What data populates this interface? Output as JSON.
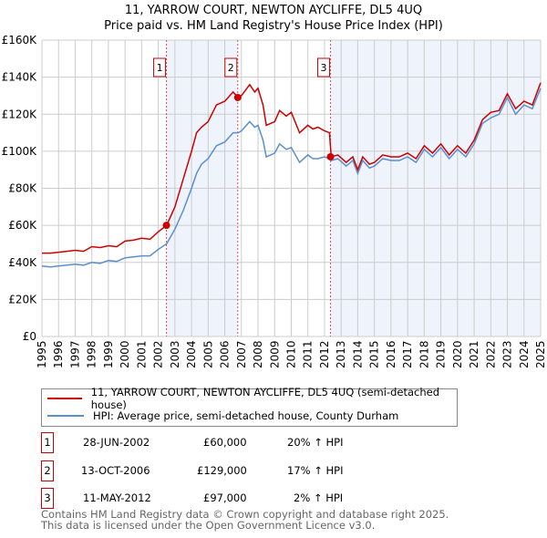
{
  "title_line1": "11, YARROW COURT, NEWTON AYCLIFFE, DL5 4UQ",
  "title_line2": "Price paid vs. HM Land Registry's House Price Index (HPI)",
  "colors": {
    "property": "#cc0000",
    "hpi": "#5b8fd0",
    "shade": "#eef3fc",
    "grid": "#cccccc"
  },
  "chart_data": {
    "type": "line",
    "xlim": [
      1995,
      2025
    ],
    "ylim": [
      0,
      160000
    ],
    "yticks": [
      0,
      20000,
      40000,
      60000,
      80000,
      100000,
      120000,
      140000,
      160000
    ],
    "ytick_labels": [
      "£0",
      "£20K",
      "£40K",
      "£60K",
      "£80K",
      "£100K",
      "£120K",
      "£140K",
      "£160K"
    ],
    "xticks": [
      "1995",
      "1996",
      "1997",
      "1998",
      "1999",
      "2000",
      "2001",
      "2002",
      "2003",
      "2004",
      "2005",
      "2006",
      "2007",
      "2008",
      "2009",
      "2010",
      "2011",
      "2012",
      "2013",
      "2014",
      "2015",
      "2016",
      "2017",
      "2018",
      "2019",
      "2020",
      "2021",
      "2022",
      "2023",
      "2024",
      "2025"
    ],
    "series": [
      {
        "name": "11, YARROW COURT, NEWTON AYCLIFFE, DL5 4UQ (semi-detached house)",
        "color": "#cc0000",
        "x": [
          1995,
          1995.5,
          1996,
          1996.5,
          1997,
          1997.5,
          1998,
          1998.5,
          1999,
          1999.5,
          2000,
          2000.5,
          2001,
          2001.5,
          2002,
          2002.5,
          2003,
          2003.5,
          2004,
          2004.3,
          2004.6,
          2005,
          2005.5,
          2006,
          2006.5,
          2006.8,
          2007,
          2007.5,
          2007.8,
          2008,
          2008.3,
          2008.5,
          2009,
          2009.3,
          2009.7,
          2010,
          2010.5,
          2011,
          2011.3,
          2011.6,
          2012,
          2012.3,
          2012.4,
          2012.8,
          2013.3,
          2013.7,
          2014,
          2014.3,
          2014.7,
          2015,
          2015.5,
          2016,
          2016.5,
          2017,
          2017.5,
          2018,
          2018.5,
          2019,
          2019.5,
          2020,
          2020.5,
          2021,
          2021.5,
          2022,
          2022.5,
          2023,
          2023.5,
          2024,
          2024.5,
          2025
        ],
        "y": [
          45000,
          45000,
          45500,
          46000,
          46500,
          46000,
          48500,
          48000,
          49000,
          48500,
          51500,
          52000,
          53000,
          52500,
          56500,
          60000,
          70000,
          85000,
          100000,
          110000,
          113000,
          116000,
          125000,
          127000,
          132000,
          129000,
          130000,
          136000,
          132000,
          134000,
          125000,
          114000,
          116000,
          122000,
          119000,
          121000,
          110000,
          114000,
          112000,
          113000,
          111000,
          110000,
          97000,
          98000,
          94000,
          97000,
          90000,
          97000,
          93000,
          94000,
          98000,
          97000,
          97000,
          99000,
          96000,
          103000,
          99000,
          104000,
          98000,
          103000,
          99000,
          106000,
          117000,
          121000,
          122000,
          131000,
          123000,
          127000,
          125000,
          137000
        ]
      },
      {
        "name": "HPI: Average price, semi-detached house, County Durham",
        "color": "#5b8fd0",
        "x": [
          1995,
          1995.5,
          1996,
          1996.5,
          1997,
          1997.5,
          1998,
          1998.5,
          1999,
          1999.5,
          2000,
          2000.5,
          2001,
          2001.5,
          2002,
          2002.5,
          2003,
          2003.5,
          2004,
          2004.3,
          2004.6,
          2005,
          2005.5,
          2006,
          2006.5,
          2006.8,
          2007,
          2007.5,
          2007.8,
          2008,
          2008.3,
          2008.5,
          2009,
          2009.3,
          2009.7,
          2010,
          2010.5,
          2011,
          2011.3,
          2011.6,
          2012,
          2012.3,
          2012.4,
          2012.8,
          2013.3,
          2013.7,
          2014,
          2014.3,
          2014.7,
          2015,
          2015.5,
          2016,
          2016.5,
          2017,
          2017.5,
          2018,
          2018.5,
          2019,
          2019.5,
          2020,
          2020.5,
          2021,
          2021.5,
          2022,
          2022.5,
          2023,
          2023.5,
          2024,
          2024.5,
          2025
        ],
        "y": [
          38000,
          37500,
          38000,
          38500,
          39000,
          38500,
          40000,
          39500,
          41000,
          40500,
          42500,
          43000,
          43500,
          43500,
          47000,
          50000,
          58000,
          68000,
          80000,
          88000,
          93000,
          96000,
          103000,
          105000,
          110000,
          110000,
          111000,
          116000,
          113000,
          114000,
          106000,
          97000,
          99000,
          104000,
          101000,
          102000,
          94000,
          98000,
          96000,
          96000,
          97000,
          96000,
          95000,
          96000,
          92000,
          95000,
          88000,
          95000,
          91000,
          92000,
          96000,
          95000,
          95000,
          97000,
          94000,
          101000,
          97000,
          102000,
          96000,
          101000,
          97000,
          104000,
          115000,
          118000,
          120000,
          129000,
          120000,
          125000,
          123000,
          134000
        ]
      }
    ],
    "sales": [
      {
        "label": "1",
        "x": 2002.49,
        "price": 60000,
        "date": "28-JUN-2002",
        "price_text": "£60,000",
        "hpi_text": "20% ↑ HPI"
      },
      {
        "label": "2",
        "x": 2006.78,
        "price": 129000,
        "date": "13-OCT-2006",
        "price_text": "£129,000",
        "hpi_text": "17% ↑ HPI"
      },
      {
        "label": "3",
        "x": 2012.36,
        "price": 97000,
        "date": "11-MAY-2012",
        "price_text": "£97,000",
        "hpi_text": "2% ↑ HPI"
      }
    ]
  },
  "legend": {
    "property": "11, YARROW COURT, NEWTON AYCLIFFE, DL5 4UQ (semi-detached house)",
    "hpi": "HPI: Average price, semi-detached house, County Durham"
  },
  "footer": {
    "line1": "Contains HM Land Registry data © Crown copyright and database right 2025.",
    "line2": "This data is licensed under the Open Government Licence v3.0."
  }
}
